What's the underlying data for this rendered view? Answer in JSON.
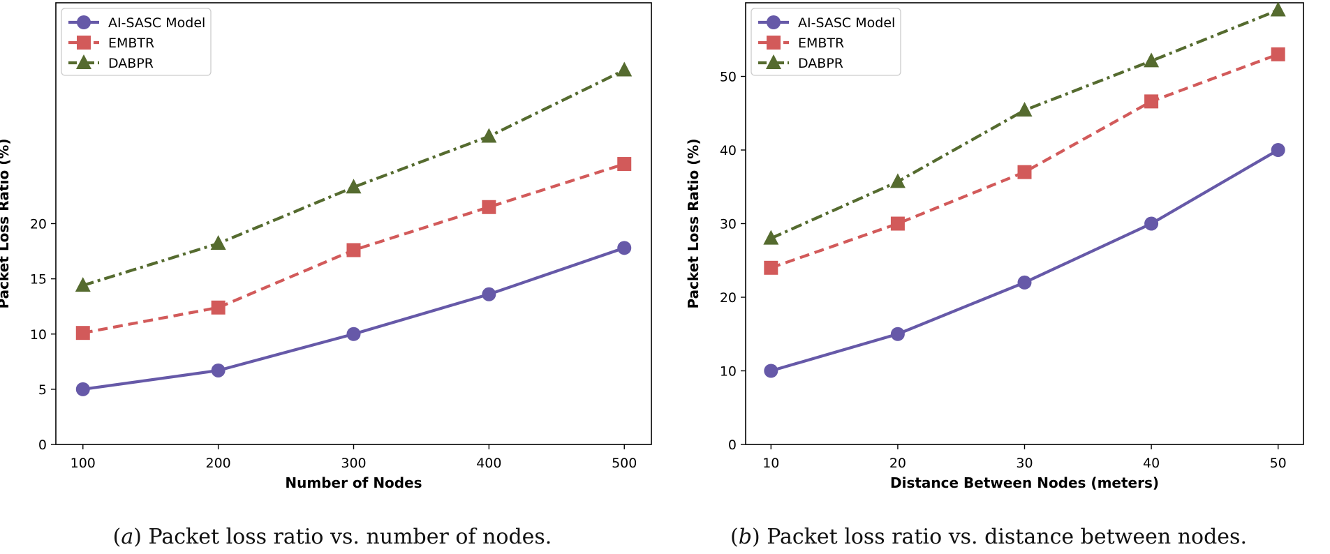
{
  "colors": {
    "ai_sasc": "#6659a8",
    "embtr": "#d25a5a",
    "dabpr": "#556b2f",
    "axis": "#000000"
  },
  "chart_data": [
    {
      "type": "line",
      "panel": "a",
      "caption_letter": "a",
      "caption_text": "Packet loss ratio vs. number of nodes.",
      "xlabel": "Number of Nodes",
      "ylabel": "Packet Loss Ratio (%)",
      "x": [
        100,
        200,
        300,
        400,
        500
      ],
      "xlim": [
        80,
        520
      ],
      "ylim": [
        0,
        40
      ],
      "yticks": [
        0,
        5,
        10,
        15,
        20
      ],
      "legend_position": "upper-left",
      "series": [
        {
          "name": "AI-SASC Model",
          "values": [
            5.0,
            6.7,
            10.0,
            13.6,
            17.8
          ],
          "marker": "circle",
          "style": "solid",
          "color": "#6659a8"
        },
        {
          "name": "EMBTR",
          "values": [
            10.1,
            12.4,
            17.6,
            21.5,
            25.4
          ],
          "marker": "square",
          "style": "dashed",
          "color": "#d25a5a"
        },
        {
          "name": "DABPR",
          "values": [
            14.4,
            18.2,
            23.3,
            27.9,
            33.9
          ],
          "marker": "triangle",
          "style": "dashdot",
          "color": "#556b2f"
        }
      ]
    },
    {
      "type": "line",
      "panel": "b",
      "caption_letter": "b",
      "caption_text": "Packet loss ratio vs. distance between nodes.",
      "xlabel": "Distance Between Nodes (meters)",
      "ylabel": "Packet Loss Ratio (%)",
      "x": [
        10,
        20,
        30,
        40,
        50
      ],
      "xlim": [
        8,
        52
      ],
      "ylim": [
        0,
        60
      ],
      "yticks": [
        0,
        10,
        20,
        30,
        40,
        50
      ],
      "legend_position": "upper-left",
      "series": [
        {
          "name": "AI-SASC Model",
          "values": [
            10,
            15,
            22,
            30,
            40
          ],
          "marker": "circle",
          "style": "solid",
          "color": "#6659a8"
        },
        {
          "name": "EMBTR",
          "values": [
            24,
            30,
            37,
            46.6,
            53
          ],
          "marker": "square",
          "style": "dashed",
          "color": "#d25a5a"
        },
        {
          "name": "DABPR",
          "values": [
            28,
            35.7,
            45.4,
            52.1,
            59
          ],
          "marker": "triangle",
          "style": "dashdot",
          "color": "#556b2f"
        }
      ]
    }
  ]
}
